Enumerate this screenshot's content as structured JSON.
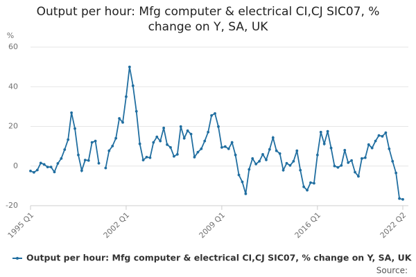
{
  "chart_data": {
    "type": "line",
    "title": "Output per hour: Mfg computer & electrical CI,CJ SIC07, % change on Y, SA, UK",
    "y_label": "%",
    "source": "Source:",
    "categories": [
      "1995 Q1",
      null,
      null,
      null,
      null,
      null,
      null,
      null,
      null,
      null,
      null,
      null,
      null,
      null,
      null,
      null,
      null,
      null,
      null,
      null,
      null,
      null,
      null,
      null,
      null,
      null,
      null,
      null,
      "2002 Q1",
      null,
      null,
      null,
      null,
      null,
      null,
      null,
      null,
      null,
      null,
      null,
      null,
      null,
      null,
      null,
      null,
      null,
      null,
      null,
      null,
      null,
      null,
      null,
      null,
      null,
      null,
      null,
      "2009 Q1",
      null,
      null,
      null,
      null,
      null,
      null,
      null,
      null,
      null,
      null,
      null,
      null,
      null,
      null,
      null,
      null,
      null,
      null,
      null,
      null,
      null,
      null,
      null,
      null,
      null,
      null,
      null,
      "2016 Q1",
      null,
      null,
      null,
      null,
      null,
      null,
      null,
      null,
      null,
      null,
      null,
      null,
      null,
      null,
      null,
      null,
      null,
      null,
      null,
      null,
      null,
      null,
      null,
      null,
      "2022 Q2"
    ],
    "series": [
      {
        "name": "Output per hour: Mfg computer & electrical CI,CJ SIC07, % change on Y, SA, UK",
        "color": "#206ea0",
        "values": [
          -2.5,
          -3.2,
          -2,
          1.5,
          0.8,
          -0.5,
          -0.5,
          -3,
          1.3,
          3.8,
          8.3,
          13.3,
          26.9,
          18.9,
          5.6,
          -2.3,
          3,
          2.8,
          11.9,
          12.6,
          1.4,
          null,
          -1,
          7.7,
          10.1,
          14,
          24,
          22,
          35,
          50,
          40.5,
          27.6,
          11.2,
          3,
          4.5,
          4.2,
          11.9,
          14.7,
          12.6,
          19.2,
          10.8,
          9.4,
          4.9,
          5.9,
          19.9,
          14,
          17.8,
          16.1,
          4.5,
          7,
          8.7,
          12.6,
          17.1,
          25.5,
          26.5,
          19.9,
          9.4,
          9.8,
          8.7,
          11.9,
          5.6,
          -4.5,
          -8,
          -14,
          -1.7,
          3.8,
          1,
          2.4,
          5.9,
          3.1,
          8.4,
          14.3,
          7.7,
          6.3,
          -2.1,
          1.4,
          0.3,
          2.4,
          7.7,
          -2.1,
          -10.5,
          -12.2,
          -8.4,
          -8.7,
          5.6,
          17.1,
          11.2,
          17.5,
          9.1,
          0,
          -0.7,
          0.3,
          8,
          1.7,
          2.8,
          -3.1,
          -5.2,
          3.8,
          4.2,
          10.8,
          9.1,
          12.6,
          15.4,
          15,
          16.8,
          8.7,
          2.4,
          -3.5,
          -16.4,
          -16.8
        ]
      }
    ],
    "ylim": [
      -20,
      60
    ],
    "yticks": [
      -20,
      0,
      20,
      40,
      60
    ],
    "grid": true
  }
}
